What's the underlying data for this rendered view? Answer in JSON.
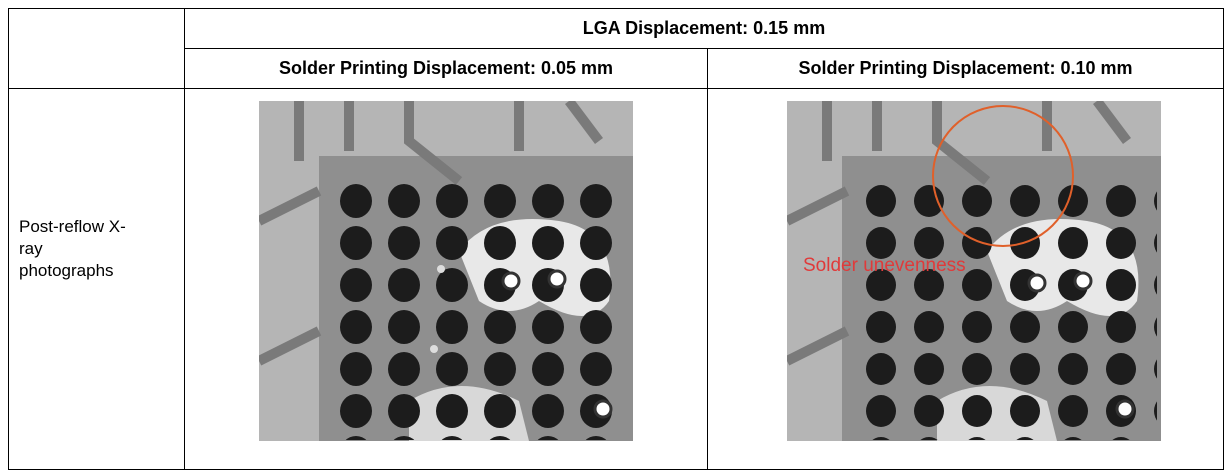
{
  "table": {
    "header": {
      "group": "LGA Displacement: 0.15 mm",
      "columns": [
        "Solder Printing Displacement: 0.05 mm",
        "Solder Printing Displacement: 0.10 mm"
      ]
    },
    "rows": [
      {
        "label": "Post-reflow X-ray photographs",
        "annotation": "Solder unevenness"
      }
    ]
  }
}
